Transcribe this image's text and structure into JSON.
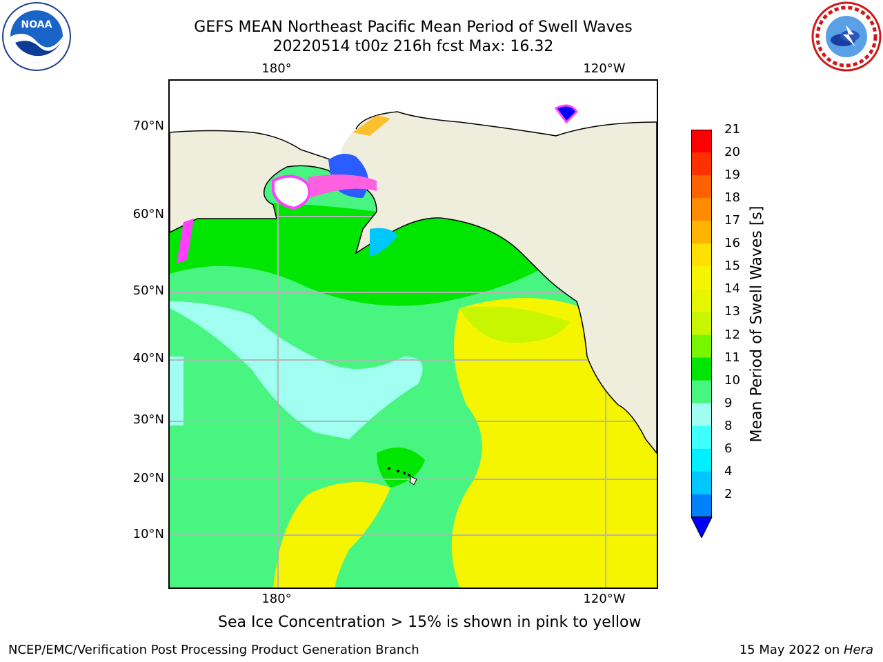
{
  "title": {
    "line1": "GEFS MEAN Northeast Pacific Mean Period of Swell Waves",
    "line2": "20220514 t00z 216h fcst   Max: 16.32"
  },
  "map": {
    "lon_labels": [
      "180°",
      "120°W"
    ],
    "lat_labels": [
      "70°N",
      "60°N",
      "50°N",
      "40°N",
      "30°N",
      "20°N",
      "10°N"
    ],
    "colors": {
      "land": "#efeddc",
      "grid": "#b4b4b4"
    }
  },
  "colorbar": {
    "title": "Mean Period of Swell Waves [s]",
    "ticks": [
      "21",
      "20",
      "19",
      "18",
      "17",
      "16",
      "15",
      "14",
      "13",
      "12",
      "11",
      "10",
      "9",
      "8",
      "6",
      "4",
      "2"
    ],
    "colors": [
      "#ff0000",
      "#ff3000",
      "#ff6000",
      "#ff8c00",
      "#ffb400",
      "#ffe000",
      "#f5f500",
      "#e6f500",
      "#c8f500",
      "#78f500",
      "#00e600",
      "#48f580",
      "#a0fff0",
      "#40ffff",
      "#00f0ff",
      "#00c8ff",
      "#0080ff"
    ],
    "min_color": "#0000ff",
    "unit": "s",
    "field_max": 16.32
  },
  "note": "Sea Ice Concentration > 15% is shown in pink to yellow",
  "footer": {
    "left": "NCEP/EMC/Verification Post Processing Product Generation Branch",
    "right_prefix": "15 May 2022 on ",
    "right_host": "Hera"
  },
  "logos": {
    "left": "noaa-logo",
    "right": "nws-logo"
  }
}
